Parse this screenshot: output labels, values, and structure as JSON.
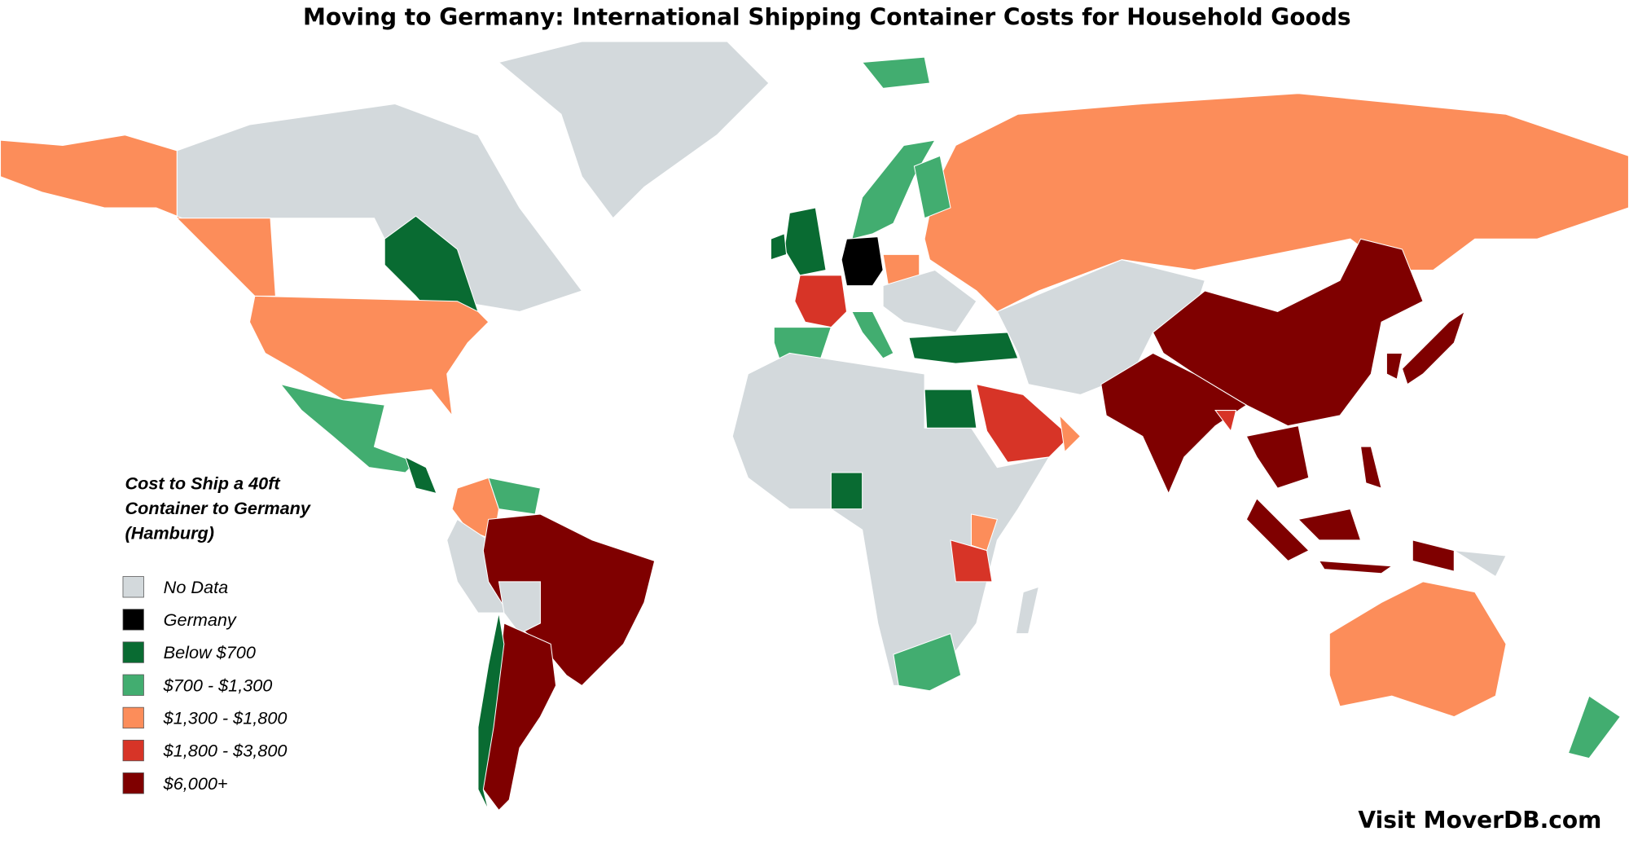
{
  "header": {
    "title": "Moving to Germany: International Shipping Container Costs for Household Goods"
  },
  "legend": {
    "title_lines": [
      "Cost to Ship a 40ft",
      "Container to Germany",
      "(Hamburg)"
    ],
    "items": [
      {
        "label": "No Data",
        "color": "#d3d9dc"
      },
      {
        "label": "Germany",
        "color": "#000000"
      },
      {
        "label": "Below $700",
        "color": "#096b32"
      },
      {
        "label": "$700 - $1,300",
        "color": "#42ad70"
      },
      {
        "label": "$1,300 - $1,800",
        "color": "#fc8d5a"
      },
      {
        "label": "$1,800 - $3,800",
        "color": "#d73427"
      },
      {
        "label": "$6,000+",
        "color": "#7f0000"
      }
    ]
  },
  "footer": {
    "text": "Visit MoverDB.com"
  }
}
